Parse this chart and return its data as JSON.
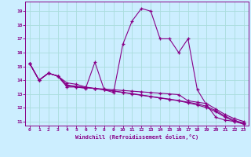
{
  "xlabel": "Windchill (Refroidissement éolien,°C)",
  "background_color": "#cceeff",
  "line_color": "#880088",
  "grid_color": "#aadddd",
  "xlim": [
    -0.5,
    23.5
  ],
  "ylim": [
    10.7,
    19.7
  ],
  "xticks": [
    0,
    1,
    2,
    3,
    4,
    5,
    6,
    7,
    8,
    9,
    10,
    11,
    12,
    13,
    14,
    15,
    16,
    17,
    18,
    19,
    20,
    21,
    22,
    23
  ],
  "yticks": [
    11,
    12,
    13,
    14,
    15,
    16,
    17,
    18,
    19
  ],
  "series1_x": [
    0,
    1,
    2,
    3,
    4,
    5,
    6,
    7,
    8,
    9,
    10,
    11,
    12,
    13,
    14,
    15,
    16,
    17,
    18,
    19,
    20,
    21,
    22,
    23
  ],
  "series1_y": [
    15.2,
    14.0,
    14.5,
    14.3,
    13.5,
    13.5,
    13.4,
    15.3,
    13.3,
    13.1,
    16.6,
    18.3,
    19.2,
    19.0,
    17.0,
    17.0,
    16.0,
    17.0,
    13.3,
    12.2,
    11.3,
    11.1,
    11.0,
    10.85
  ],
  "series2_x": [
    0,
    1,
    2,
    3,
    4,
    5,
    6,
    7,
    8,
    9,
    10,
    11,
    12,
    13,
    14,
    15,
    16,
    17,
    18,
    19,
    20,
    21,
    22,
    23
  ],
  "series2_y": [
    15.2,
    14.0,
    14.5,
    14.3,
    13.8,
    13.7,
    13.5,
    13.4,
    13.35,
    13.3,
    13.25,
    13.2,
    13.15,
    13.1,
    13.05,
    13.0,
    12.95,
    12.5,
    12.4,
    12.3,
    11.9,
    11.5,
    11.2,
    11.0
  ],
  "series3_x": [
    0,
    1,
    2,
    3,
    4,
    5,
    6,
    7,
    8,
    9,
    10,
    11,
    12,
    13,
    14,
    15,
    16,
    17,
    18,
    19,
    20,
    21,
    22,
    23
  ],
  "series3_y": [
    15.2,
    14.0,
    14.5,
    14.3,
    13.6,
    13.5,
    13.45,
    13.4,
    13.3,
    13.2,
    13.1,
    13.0,
    12.9,
    12.8,
    12.7,
    12.6,
    12.5,
    12.35,
    12.2,
    12.0,
    11.7,
    11.3,
    11.0,
    10.8
  ],
  "series4_x": [
    0,
    1,
    2,
    3,
    4,
    5,
    6,
    7,
    8,
    9,
    10,
    11,
    12,
    13,
    14,
    15,
    16,
    17,
    18,
    19,
    20,
    21,
    22,
    23
  ],
  "series4_y": [
    15.2,
    14.0,
    14.5,
    14.3,
    13.65,
    13.55,
    13.47,
    13.38,
    13.3,
    13.22,
    13.12,
    13.02,
    12.92,
    12.82,
    12.72,
    12.62,
    12.52,
    12.4,
    12.28,
    12.1,
    11.78,
    11.38,
    11.08,
    10.88
  ]
}
